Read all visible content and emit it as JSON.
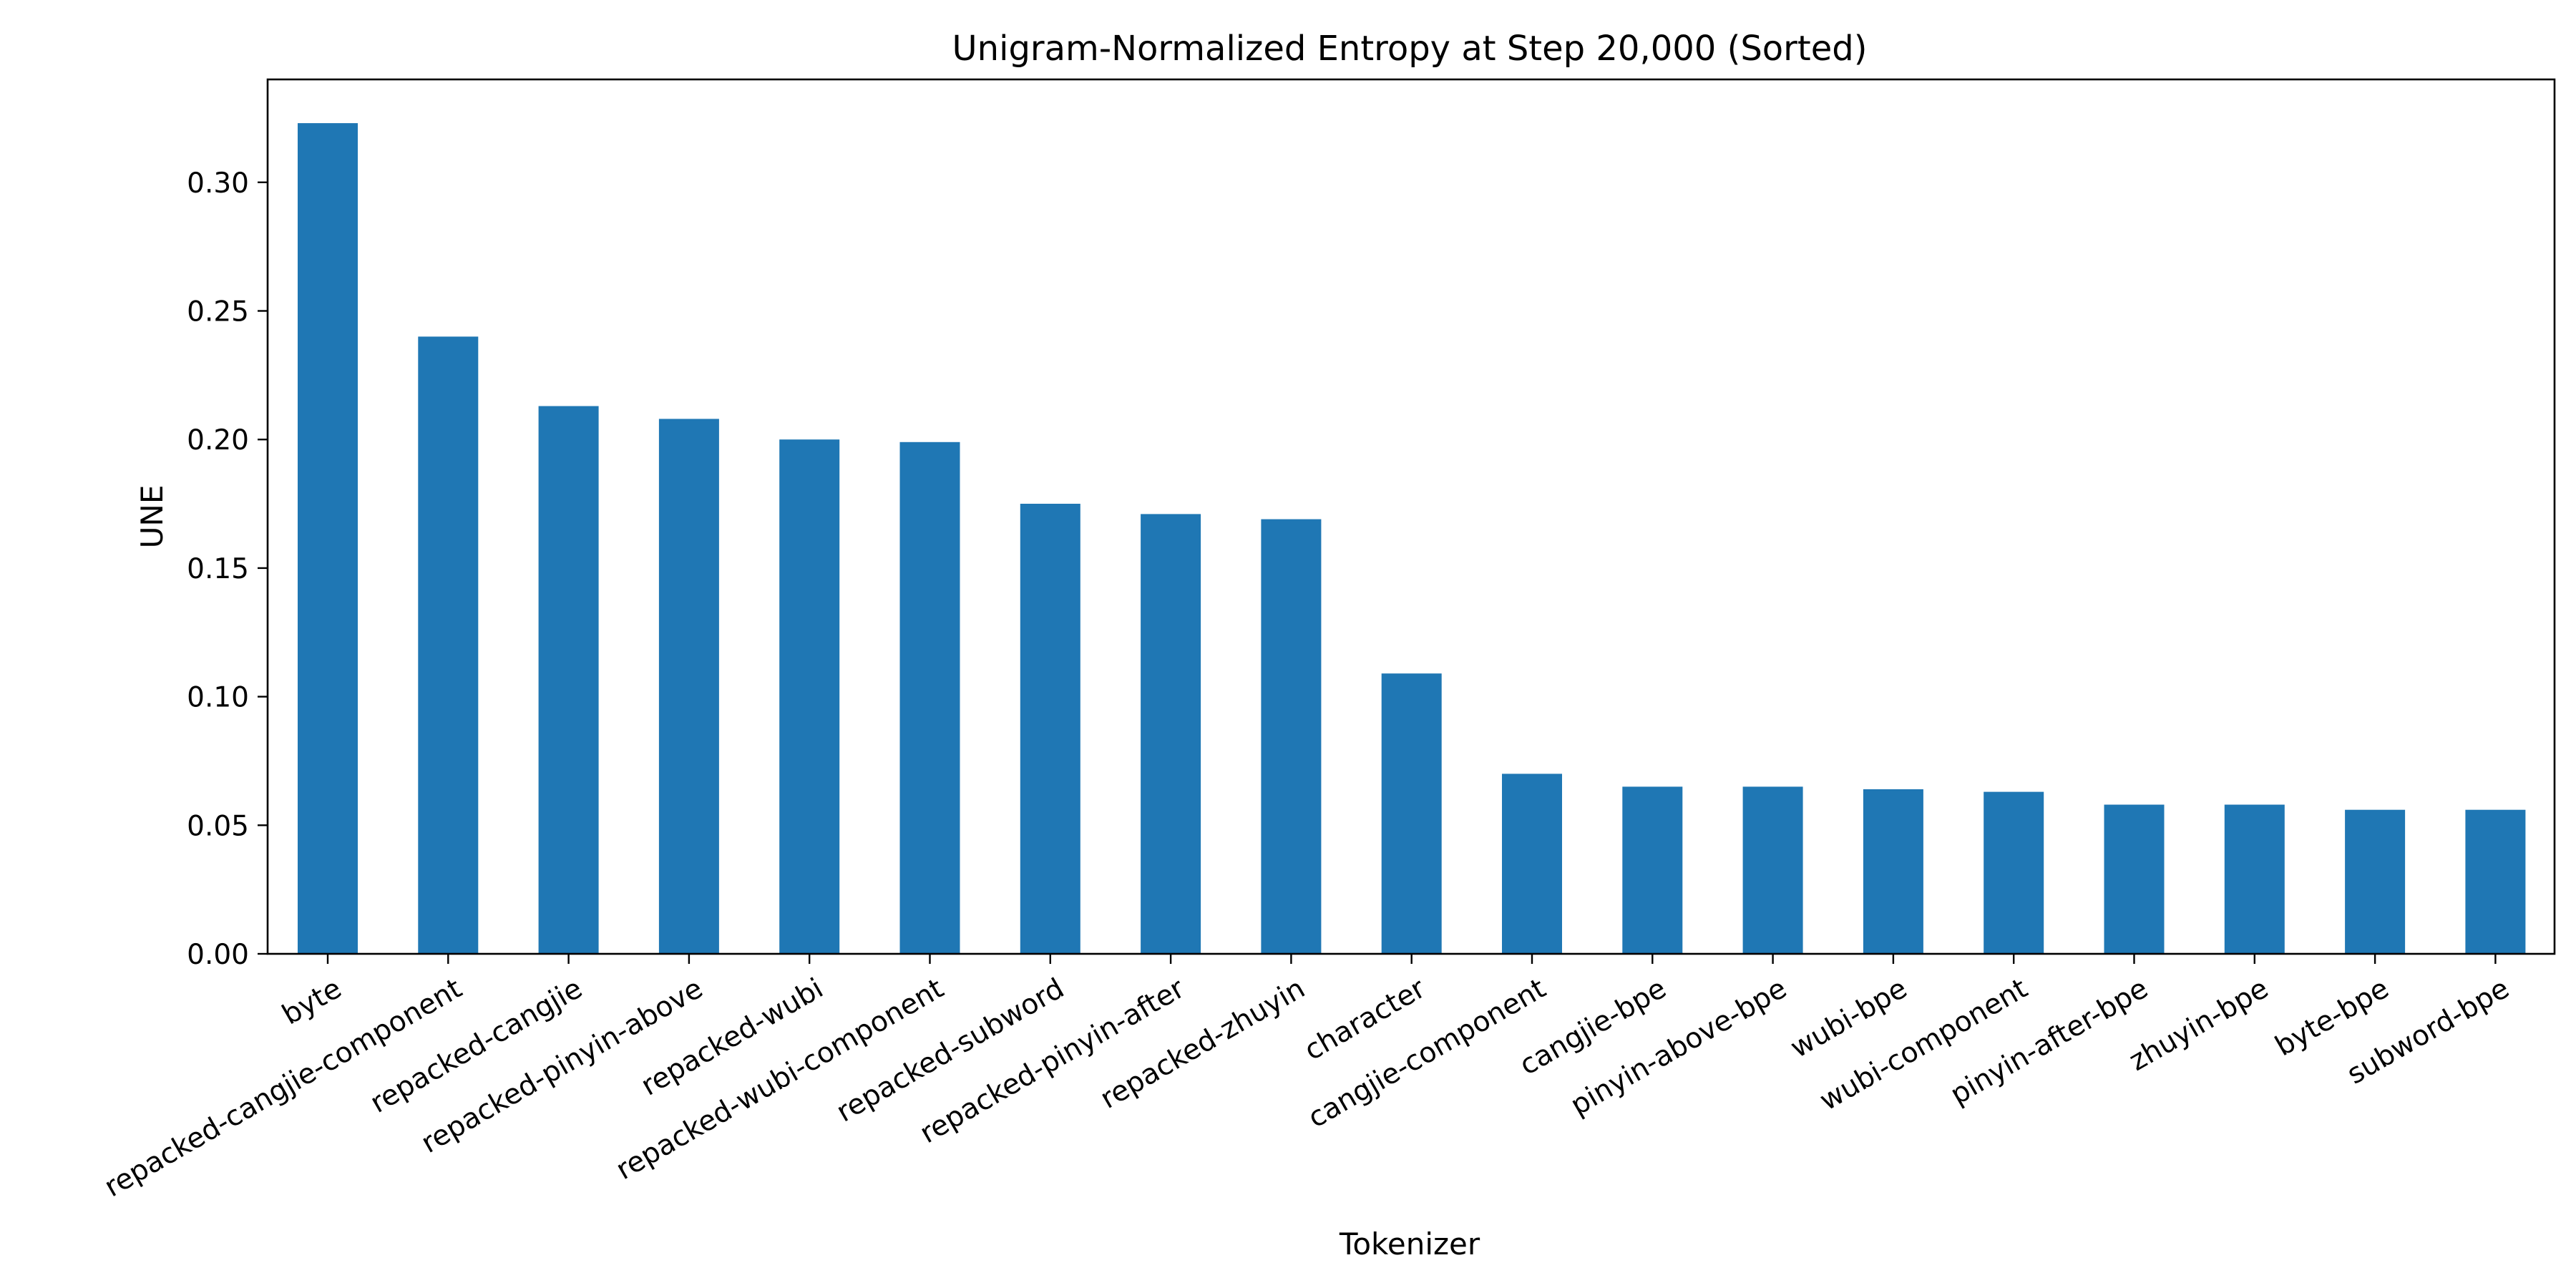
{
  "chart_data": {
    "type": "bar",
    "title": "Unigram-Normalized Entropy at Step 20,000 (Sorted)",
    "xlabel": "Tokenizer",
    "ylabel": "UNE",
    "ylim": [
      0,
      0.34
    ],
    "yticks": [
      "0.00",
      "0.05",
      "0.10",
      "0.15",
      "0.20",
      "0.25",
      "0.30"
    ],
    "grid": false,
    "bar_color": "#1f77b4",
    "categories": [
      "byte",
      "repacked-cangjie-component",
      "repacked-cangjie",
      "repacked-pinyin-above",
      "repacked-wubi",
      "repacked-wubi-component",
      "repacked-subword",
      "repacked-pinyin-after",
      "repacked-zhuyin",
      "character",
      "cangjie-component",
      "cangjie-bpe",
      "pinyin-above-bpe",
      "wubi-bpe",
      "wubi-component",
      "pinyin-after-bpe",
      "zhuyin-bpe",
      "byte-bpe",
      "subword-bpe"
    ],
    "values": [
      0.323,
      0.24,
      0.213,
      0.208,
      0.2,
      0.199,
      0.175,
      0.171,
      0.169,
      0.109,
      0.07,
      0.065,
      0.065,
      0.064,
      0.063,
      0.058,
      0.058,
      0.056,
      0.056
    ]
  }
}
